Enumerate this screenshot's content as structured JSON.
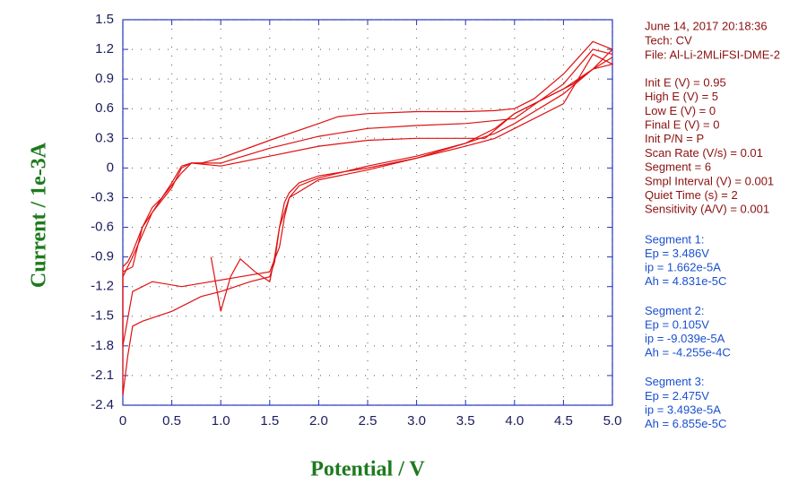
{
  "chart_data": {
    "type": "line",
    "x_label": "Potential / V",
    "y_label": "Current / 1e-3A",
    "xlim": [
      0,
      5
    ],
    "ylim": [
      -2.4,
      1.5
    ],
    "xticks": [
      0,
      0.5,
      {
        "value": 1,
        "label": "1.0"
      },
      1.5,
      {
        "value": 2,
        "label": "2.0"
      },
      2.5,
      {
        "value": 3,
        "label": "3.0"
      },
      3.5,
      {
        "value": 4,
        "label": "4.0"
      },
      4.5,
      {
        "value": 5,
        "label": "5.0"
      }
    ],
    "yticks": [
      1.5,
      1.2,
      0.9,
      0.6,
      0.3,
      0,
      -0.3,
      -0.6,
      -0.9,
      -1.2,
      -1.5,
      -1.8,
      -2.1,
      -2.4
    ],
    "grid": true,
    "series": [
      {
        "color": "#e01010",
        "x": [
          5.0,
          4.8,
          4.5,
          4.2,
          4.0,
          3.8,
          3.5,
          3.0,
          2.5,
          2.2,
          2.0,
          1.5,
          1.0,
          0.8,
          0.7,
          0.6,
          0.5,
          0.4,
          0.3,
          0.2,
          0.1,
          0.05,
          0.0,
          0.0,
          0.05,
          0.1,
          0.2,
          0.5,
          0.8,
          1.0,
          1.3,
          1.5,
          1.55,
          1.6,
          1.65,
          1.7,
          1.8,
          2.0,
          2.5,
          3.0,
          3.5,
          3.8,
          4.0,
          4.3,
          4.6,
          4.8,
          4.9,
          5.0
        ],
        "values": [
          1.2,
          1.28,
          0.95,
          0.7,
          0.6,
          0.58,
          0.57,
          0.57,
          0.55,
          0.52,
          0.45,
          0.28,
          0.1,
          0.05,
          0.05,
          0.02,
          -0.15,
          -0.3,
          -0.4,
          -0.6,
          -0.85,
          -0.95,
          -1.0,
          -2.3,
          -1.9,
          -1.6,
          -1.55,
          -1.45,
          -1.3,
          -1.25,
          -1.15,
          -1.1,
          -0.95,
          -0.6,
          -0.35,
          -0.25,
          -0.15,
          -0.08,
          0.0,
          0.1,
          0.25,
          0.4,
          0.55,
          0.7,
          0.85,
          1.0,
          1.1,
          1.2
        ]
      },
      {
        "color": "#e01010",
        "x": [
          5.0,
          4.8,
          4.5,
          4.0,
          3.5,
          3.0,
          2.5,
          2.0,
          1.5,
          1.0,
          0.7,
          0.6,
          0.5,
          0.3,
          0.1,
          0.0,
          0.0,
          0.1,
          0.3,
          0.6,
          0.9,
          1.2,
          1.5,
          1.6,
          1.65,
          1.7,
          1.8,
          2.0,
          2.5,
          3.0,
          3.5,
          3.8,
          4.0,
          4.5,
          4.8,
          5.0
        ],
        "values": [
          1.15,
          1.2,
          0.85,
          0.5,
          0.45,
          0.43,
          0.4,
          0.32,
          0.2,
          0.05,
          0.05,
          0.0,
          -0.2,
          -0.45,
          -0.9,
          -1.1,
          -1.8,
          -1.25,
          -1.15,
          -1.2,
          -1.15,
          -1.1,
          -1.05,
          -0.8,
          -0.5,
          -0.3,
          -0.18,
          -0.1,
          0.02,
          0.12,
          0.25,
          0.35,
          0.45,
          0.75,
          1.0,
          1.12
        ]
      },
      {
        "color": "#e01010",
        "x": [
          0.9,
          1.0,
          1.1,
          1.2,
          1.35,
          1.5,
          1.55,
          1.6,
          1.7,
          2.0,
          2.5,
          3.0,
          3.5,
          3.8,
          4.0,
          4.5,
          4.8,
          5.0,
          4.8,
          4.5,
          4.0,
          3.7,
          3.5,
          3.0,
          2.5,
          2.0,
          1.5,
          1.0,
          0.7,
          0.6,
          0.4,
          0.2,
          0.1,
          0.0
        ],
        "values": [
          -0.9,
          -1.45,
          -1.1,
          -0.92,
          -1.05,
          -1.15,
          -0.9,
          -0.6,
          -0.3,
          -0.12,
          -0.02,
          0.1,
          0.22,
          0.3,
          0.4,
          0.65,
          1.15,
          1.05,
          1.0,
          0.8,
          0.55,
          0.3,
          0.3,
          0.3,
          0.28,
          0.22,
          0.12,
          0.02,
          0.05,
          -0.05,
          -0.3,
          -0.6,
          -1.0,
          -1.05
        ]
      }
    ],
    "header": [
      "June 14, 2017   20:18:36",
      "Tech: CV",
      "File: Al-Li-2MLiFSI-DME-2"
    ],
    "parameters": [
      "Init E (V) = 0.95",
      "High E (V) = 5",
      "Low E (V) = 0",
      "Final E (V) = 0",
      "Init P/N = P",
      "Scan Rate (V/s) = 0.01",
      "Segment = 6",
      "Smpl Interval (V) = 0.001",
      "Quiet Time (s) = 2",
      "Sensitivity (A/V) = 0.001"
    ],
    "segments": [
      [
        "Segment 1:",
        "Ep = 3.486V",
        "ip = 1.662e-5A",
        "Ah = 4.831e-5C"
      ],
      [
        "Segment 2:",
        "Ep = 0.105V",
        "ip = -9.039e-5A",
        "Ah = -4.255e-4C"
      ],
      [
        "Segment 3:",
        "Ep = 2.475V",
        "ip = 3.493e-5A",
        "Ah = 6.855e-5C"
      ]
    ]
  }
}
